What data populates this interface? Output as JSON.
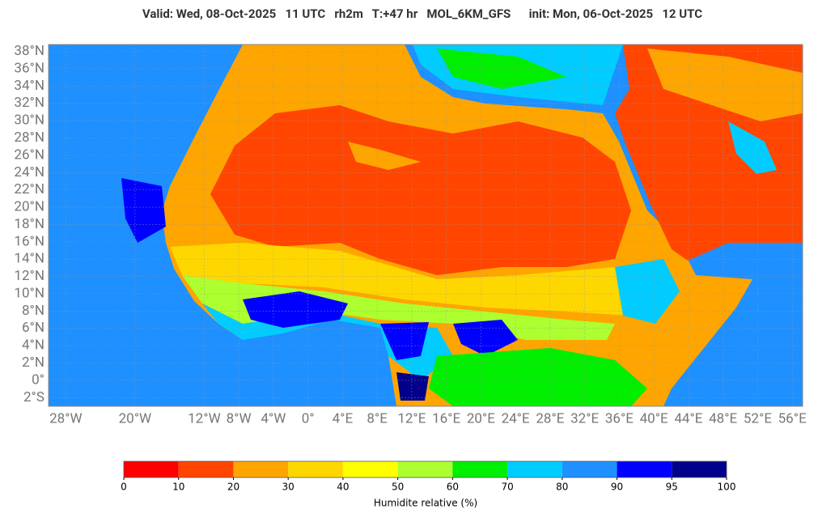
{
  "title": "Valid: Wed, 08-Oct-2025   11 UTC   rh2m   T:+47 hr   MOL_6KM_GFS      init: Mon, 06-Oct-2025   12 UTC",
  "map": {
    "lon_range": [
      -30,
      57.2
    ],
    "lat_range": [
      -3,
      38.8
    ],
    "lat_ticks": [
      {
        "value": 38,
        "label": "38°N"
      },
      {
        "value": 36,
        "label": "36°N"
      },
      {
        "value": 34,
        "label": "34°N"
      },
      {
        "value": 32,
        "label": "32°N"
      },
      {
        "value": 30,
        "label": "30°N"
      },
      {
        "value": 28,
        "label": "28°N"
      },
      {
        "value": 26,
        "label": "26°N"
      },
      {
        "value": 24,
        "label": "24°N"
      },
      {
        "value": 22,
        "label": "22°N"
      },
      {
        "value": 20,
        "label": "20°N"
      },
      {
        "value": 18,
        "label": "18°N"
      },
      {
        "value": 16,
        "label": "16°N"
      },
      {
        "value": 14,
        "label": "14°N"
      },
      {
        "value": 12,
        "label": "12°N"
      },
      {
        "value": 10,
        "label": "10°N"
      },
      {
        "value": 8,
        "label": "8°N"
      },
      {
        "value": 6,
        "label": "6°N"
      },
      {
        "value": 4,
        "label": "4°N"
      },
      {
        "value": 2,
        "label": "2°N"
      },
      {
        "value": 0,
        "label": "0°"
      },
      {
        "value": -2,
        "label": "2°S"
      }
    ],
    "lon_ticks": [
      {
        "value": -28,
        "label": "28°W"
      },
      {
        "value": -20,
        "label": "20°W"
      },
      {
        "value": -12,
        "label": "12°W"
      },
      {
        "value": -8,
        "label": "8°W"
      },
      {
        "value": -4,
        "label": "4°W"
      },
      {
        "value": 0,
        "label": "0°"
      },
      {
        "value": 4,
        "label": "4°E"
      },
      {
        "value": 8,
        "label": "8°E"
      },
      {
        "value": 12,
        "label": "12°E"
      },
      {
        "value": 16,
        "label": "16°E"
      },
      {
        "value": 20,
        "label": "20°E"
      },
      {
        "value": 24,
        "label": "24°E"
      },
      {
        "value": 28,
        "label": "28°E"
      },
      {
        "value": 32,
        "label": "32°E"
      },
      {
        "value": 36,
        "label": "36°E"
      },
      {
        "value": 40,
        "label": "40°E"
      },
      {
        "value": 44,
        "label": "44°E"
      },
      {
        "value": 48,
        "label": "48°E"
      },
      {
        "value": 52,
        "label": "52°E"
      },
      {
        "value": 56,
        "label": "56°E"
      }
    ]
  },
  "colorbar": {
    "ticks": [
      0,
      10,
      20,
      30,
      40,
      50,
      60,
      70,
      80,
      90,
      95,
      100
    ],
    "colors": [
      "#ff0000",
      "#ff4500",
      "#ffa500",
      "#ffd700",
      "#ffff00",
      "#adff2f",
      "#00ee00",
      "#00ccff",
      "#1e90ff",
      "#0000ff",
      "#00008b"
    ],
    "label": "Humidite relative (%)"
  }
}
